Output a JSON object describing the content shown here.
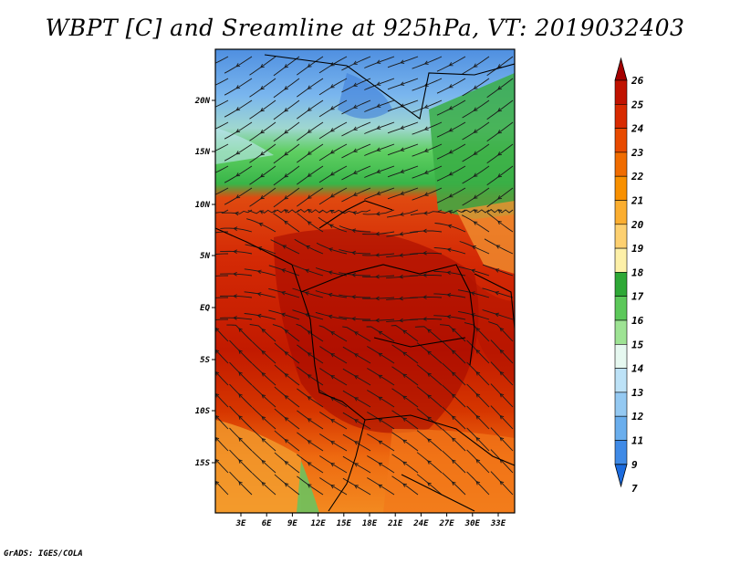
{
  "title": "WBPT [C] and Sreamline at 925hPa, VT: 2019032403",
  "credit": "GrADS: IGES/COLA",
  "map": {
    "lat_labels": [
      "20N",
      "15N",
      "10N",
      "5N",
      "EQ",
      "5S",
      "10S",
      "15S"
    ],
    "lon_labels": [
      "3E",
      "6E",
      "9E",
      "12E",
      "15E",
      "18E",
      "21E",
      "24E",
      "27E",
      "30E",
      "33E"
    ],
    "lon_range": [
      0,
      35
    ],
    "lat_range": [
      -20,
      24
    ]
  },
  "colorbar": {
    "labels": [
      "26",
      "25",
      "24",
      "23",
      "22",
      "21",
      "20",
      "19",
      "18",
      "17",
      "16",
      "15",
      "14",
      "13",
      "12",
      "11",
      "9",
      "7"
    ],
    "colors": [
      "#a50000",
      "#c01200",
      "#d82a00",
      "#e84a00",
      "#f06c00",
      "#f89000",
      "#fbae30",
      "#fdd070",
      "#fdf0a8",
      "#2ea836",
      "#5cc85a",
      "#9ee394",
      "#e6f8f0",
      "#bde2f7",
      "#94c9f2",
      "#6aaeed",
      "#3f8ae6",
      "#1b6bde"
    ]
  }
}
